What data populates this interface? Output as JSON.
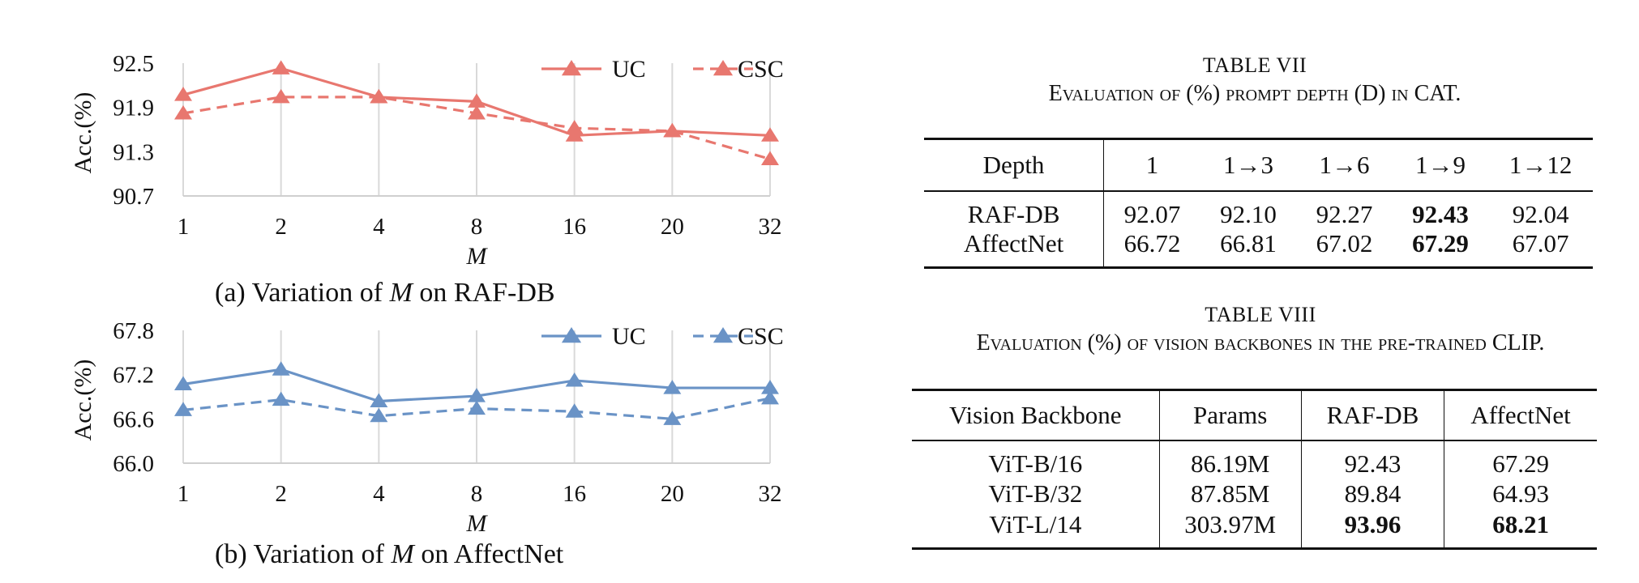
{
  "chart_data": [
    {
      "type": "line",
      "id": "a",
      "categories": [
        "1",
        "2",
        "4",
        "8",
        "16",
        "20",
        "32"
      ],
      "series": [
        {
          "name": "UC",
          "values": [
            92.07,
            92.43,
            92.04,
            91.98,
            91.52,
            91.58,
            91.52
          ],
          "style": "solid",
          "color": "#e8776f"
        },
        {
          "name": "CSC",
          "values": [
            91.82,
            92.04,
            92.04,
            91.82,
            91.62,
            91.58,
            91.2
          ],
          "style": "dashed",
          "color": "#e8776f"
        }
      ],
      "ylabel": "Acc.(%)",
      "xlabel": "M",
      "yticks": [
        "92.5",
        "91.9",
        "91.3",
        "90.7"
      ],
      "ylim": [
        90.7,
        92.5
      ],
      "grid": "vertical",
      "legend_position": "top-right"
    },
    {
      "type": "line",
      "id": "b",
      "categories": [
        "1",
        "2",
        "4",
        "8",
        "16",
        "20",
        "32"
      ],
      "series": [
        {
          "name": "UC",
          "values": [
            67.07,
            67.27,
            66.84,
            66.91,
            67.12,
            67.02,
            67.02
          ],
          "style": "solid",
          "color": "#6a93c6"
        },
        {
          "name": "CSC",
          "values": [
            66.72,
            66.86,
            66.64,
            66.74,
            66.7,
            66.6,
            66.88
          ],
          "style": "dashed",
          "color": "#6a93c6"
        }
      ],
      "ylabel": "Acc.(%)",
      "xlabel": "M",
      "yticks": [
        "67.8",
        "67.2",
        "66.6",
        "66.0"
      ],
      "ylim": [
        66.0,
        67.8
      ],
      "grid": "vertical",
      "legend_position": "top-right"
    }
  ],
  "captions": {
    "a_prefix": "(a) Variation of",
    "a_var": "M",
    "a_suffix": "on RAF-DB",
    "b_prefix": "(b) Variation of",
    "b_var": "M",
    "b_suffix": "on AffectNet"
  },
  "table7": {
    "number": "TABLE VII",
    "title": "Evaluation of (%) prompt depth (D) in CAT.",
    "header": [
      "Depth",
      "1",
      "1→3",
      "1→6",
      "1→9",
      "1→12"
    ],
    "rows": [
      {
        "name": "RAF-DB",
        "cells": [
          "92.07",
          "92.10",
          "92.27",
          "92.43",
          "92.04"
        ]
      },
      {
        "name": "AffectNet",
        "cells": [
          "66.72",
          "66.81",
          "67.02",
          "67.29",
          "67.07"
        ]
      }
    ]
  },
  "table8": {
    "number": "TABLE VIII",
    "title": "Evaluation (%) of vision backbones in the pre-trained CLIP.",
    "header": [
      "Vision Backbone",
      "Params",
      "RAF-DB",
      "AffectNet"
    ],
    "rows": [
      [
        "ViT-B/16",
        "86.19M",
        "92.43",
        "67.29"
      ],
      [
        "ViT-B/32",
        "87.85M",
        "89.84",
        "64.93"
      ],
      [
        "ViT-L/14",
        "303.97M",
        "93.96",
        "68.21"
      ]
    ]
  }
}
